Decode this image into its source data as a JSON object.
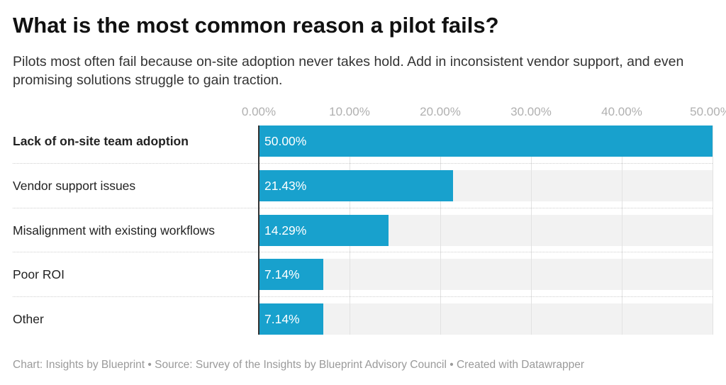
{
  "chart_data": {
    "type": "bar",
    "orientation": "horizontal",
    "title": "What is the most common reason a pilot fails?",
    "subtitle": "Pilots most often fail because on-site adoption never takes hold. Add in inconsistent vendor support, and even promising solutions struggle to gain traction.",
    "categories": [
      "Lack of on-site team adoption",
      "Vendor support issues",
      "Misalignment with existing workflows",
      "Poor ROI",
      "Other"
    ],
    "values": [
      50.0,
      21.43,
      14.29,
      7.14,
      7.14
    ],
    "value_labels": [
      "50.00%",
      "21.43%",
      "14.29%",
      "7.14%",
      "7.14%"
    ],
    "highlighted_category": "Lack of on-site team adoption",
    "xlim": [
      0,
      50
    ],
    "ticks": [
      0,
      10,
      20,
      30,
      40,
      50
    ],
    "tick_labels": [
      "0.00%",
      "10.00%",
      "20.00%",
      "30.00%",
      "40.00%",
      "50.00%"
    ],
    "xlabel": "",
    "ylabel": "",
    "grid": true,
    "bar_color": "#18a1cd",
    "background_bar_color": "#f2f2f2"
  },
  "footer": "Chart: Insights by Blueprint • Source: Survey of the Insights by Blueprint Advisory Council • Created with Datawrapper"
}
